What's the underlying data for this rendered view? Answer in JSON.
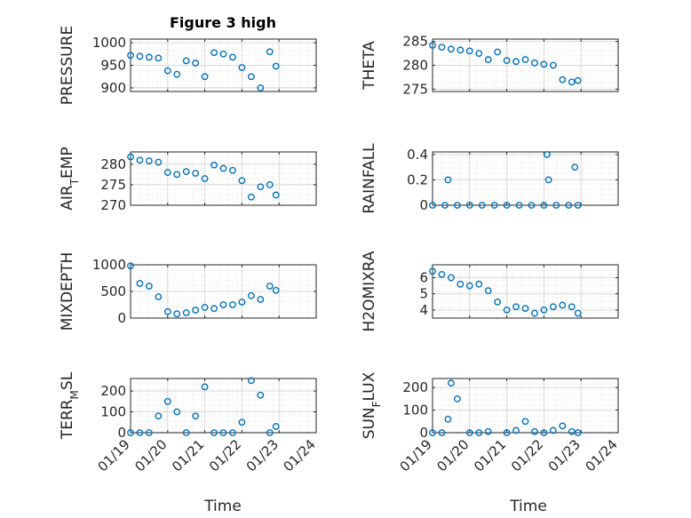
{
  "figure": {
    "title": "Figure 3 high"
  },
  "colors": {
    "marker": "#0072BD",
    "axis": "#262626",
    "grid": "#d9d9d9"
  },
  "chart_data": [
    {
      "type": "scatter",
      "ylabel": "PRESSURE",
      "title": "Figure 3 high",
      "ylim": [
        892,
        1008
      ],
      "yticks": [
        900,
        950,
        1000
      ],
      "ytick_labels": [
        "900",
        "950",
        "1000"
      ],
      "grid": true,
      "x": [
        "01/19",
        "01/19 06h",
        "01/19 12h",
        "01/19 18h",
        "01/20",
        "01/20 06h",
        "01/20 12h",
        "01/20 18h",
        "01/21",
        "01/21 06h",
        "01/21 12h",
        "01/21 18h",
        "01/22",
        "01/22 06h",
        "01/22 12h",
        "01/22 18h",
        "01/22 22h"
      ],
      "values": [
        972,
        970,
        968,
        966,
        938,
        930,
        960,
        955,
        925,
        978,
        975,
        968,
        945,
        925,
        900,
        980,
        948
      ]
    },
    {
      "type": "scatter",
      "ylabel": "THETA",
      "ylim": [
        274.5,
        285.5
      ],
      "yticks": [
        275,
        280,
        285
      ],
      "ytick_labels": [
        "275",
        "280",
        "285"
      ],
      "grid": true,
      "x": [
        "01/19",
        "01/19 06h",
        "01/19 12h",
        "01/19 18h",
        "01/20",
        "01/20 06h",
        "01/20 12h",
        "01/20 18h",
        "01/21",
        "01/21 06h",
        "01/21 12h",
        "01/21 18h",
        "01/22",
        "01/22 06h",
        "01/22 12h",
        "01/22 18h",
        "01/22 22h"
      ],
      "values": [
        284.2,
        283.8,
        283.4,
        283.2,
        283.0,
        282.5,
        281.2,
        282.8,
        281.0,
        280.8,
        281.2,
        280.5,
        280.2,
        280.0,
        277.0,
        276.5,
        276.8
      ]
    },
    {
      "type": "scatter",
      "ylabel": "AIR_TEMP",
      "ylim": [
        270,
        283
      ],
      "yticks": [
        270,
        275,
        280
      ],
      "ytick_labels": [
        "270",
        "275",
        "280"
      ],
      "grid": true,
      "x": [
        "01/19",
        "01/19 06h",
        "01/19 12h",
        "01/19 18h",
        "01/20",
        "01/20 06h",
        "01/20 12h",
        "01/20 18h",
        "01/21",
        "01/21 06h",
        "01/21 12h",
        "01/21 18h",
        "01/22",
        "01/22 06h",
        "01/22 12h",
        "01/22 18h",
        "01/22 22h"
      ],
      "values": [
        281.8,
        281.0,
        280.8,
        280.5,
        278.0,
        277.5,
        278.2,
        277.8,
        276.5,
        279.8,
        279.0,
        278.5,
        276.0,
        272.0,
        274.5,
        275.0,
        272.5
      ]
    },
    {
      "type": "scatter",
      "ylabel": "RAINFALL",
      "ylim": [
        0,
        0.42
      ],
      "yticks": [
        0,
        0.2,
        0.4
      ],
      "ytick_labels": [
        "0",
        "0.2",
        "0.4"
      ],
      "grid": true,
      "x": [
        "01/19",
        "01/19 08h",
        "01/19 16h",
        "01/20",
        "01/20 08h",
        "01/20 16h",
        "01/21",
        "01/21 08h",
        "01/21 16h",
        "01/22",
        "01/22 08h",
        "01/22 16h",
        "01/22 22h",
        "01/19 10h",
        "01/22 02h",
        "01/22 03h",
        "01/22 20h"
      ],
      "values": [
        0,
        0,
        0,
        0,
        0,
        0,
        0,
        0,
        0,
        0,
        0,
        0,
        0,
        0.2,
        0.4,
        0.2,
        0.3
      ]
    },
    {
      "type": "scatter",
      "ylabel": "MIXDEPTH",
      "ylim": [
        0,
        1000
      ],
      "yticks": [
        0,
        500,
        1000
      ],
      "ytick_labels": [
        "0",
        "500",
        "1000"
      ],
      "grid": true,
      "x": [
        "01/19",
        "01/19 06h",
        "01/19 12h",
        "01/19 18h",
        "01/20",
        "01/20 06h",
        "01/20 12h",
        "01/20 18h",
        "01/21",
        "01/21 06h",
        "01/21 12h",
        "01/21 18h",
        "01/22",
        "01/22 06h",
        "01/22 12h",
        "01/22 18h",
        "01/22 22h"
      ],
      "values": [
        980,
        650,
        600,
        400,
        120,
        80,
        100,
        150,
        200,
        180,
        250,
        250,
        300,
        420,
        350,
        600,
        520
      ]
    },
    {
      "type": "scatter",
      "ylabel": "H2OMIXRA",
      "ylim": [
        3.5,
        6.8
      ],
      "yticks": [
        4,
        5,
        6
      ],
      "ytick_labels": [
        "4",
        "5",
        "6"
      ],
      "grid": true,
      "x": [
        "01/19",
        "01/19 06h",
        "01/19 12h",
        "01/19 18h",
        "01/20",
        "01/20 06h",
        "01/20 12h",
        "01/20 18h",
        "01/21",
        "01/21 06h",
        "01/21 12h",
        "01/21 18h",
        "01/22",
        "01/22 06h",
        "01/22 12h",
        "01/22 18h",
        "01/22 22h"
      ],
      "values": [
        6.4,
        6.2,
        6.0,
        5.6,
        5.5,
        5.6,
        5.2,
        4.5,
        4.0,
        4.2,
        4.1,
        3.8,
        4.0,
        4.2,
        4.3,
        4.2,
        3.8
      ]
    },
    {
      "type": "scatter",
      "ylabel": "TERR_MSL",
      "ylim": [
        0,
        260
      ],
      "yticks": [
        0,
        100,
        200
      ],
      "ytick_labels": [
        "0",
        "100",
        "200"
      ],
      "grid": true,
      "x": [
        "01/19",
        "01/19 06h",
        "01/19 12h",
        "01/19 18h",
        "01/20",
        "01/20 06h",
        "01/20 12h",
        "01/20 18h",
        "01/21",
        "01/21 06h",
        "01/21 12h",
        "01/21 18h",
        "01/22",
        "01/22 06h",
        "01/22 12h",
        "01/22 18h",
        "01/22 22h"
      ],
      "values": [
        0,
        0,
        0,
        80,
        150,
        100,
        0,
        80,
        220,
        0,
        0,
        0,
        50,
        250,
        180,
        0,
        30
      ]
    },
    {
      "type": "scatter",
      "ylabel": "SUN_FLUX",
      "ylim": [
        0,
        240
      ],
      "yticks": [
        0,
        100,
        200
      ],
      "ytick_labels": [
        "0",
        "100",
        "200"
      ],
      "grid": true,
      "x": [
        "01/19",
        "01/19 06h",
        "01/19 10h",
        "01/19 12h",
        "01/19 16h",
        "01/20",
        "01/20 06h",
        "01/20 12h",
        "01/21",
        "01/21 06h",
        "01/21 12h",
        "01/21 18h",
        "01/22",
        "01/22 06h",
        "01/22 12h",
        "01/22 18h",
        "01/22 22h"
      ],
      "values": [
        0,
        0,
        60,
        220,
        150,
        0,
        0,
        5,
        0,
        10,
        50,
        5,
        0,
        10,
        30,
        5,
        0
      ]
    }
  ],
  "shared_x": {
    "xlabel": "Time",
    "xticks": [
      "01/19",
      "01/20",
      "01/21",
      "01/22",
      "01/23",
      "01/24"
    ],
    "xlim": [
      "01/19",
      "01/24"
    ]
  }
}
